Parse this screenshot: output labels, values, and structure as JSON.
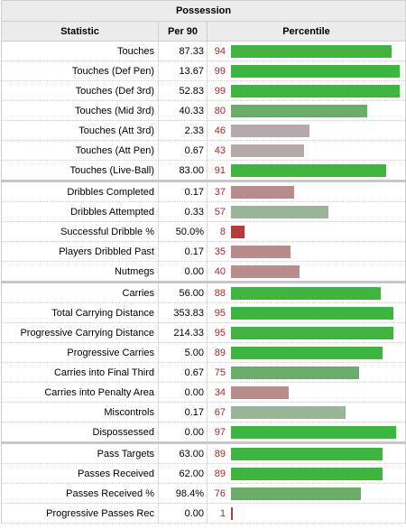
{
  "section_title": "Possession",
  "columns": {
    "statistic": "Statistic",
    "per90": "Per 90",
    "percentile": "Percentile"
  },
  "colors": {
    "elite_bar": "#3fb53f",
    "high_bar": "#6aac6a",
    "mid_bar": "#9ab49a",
    "neutral_bar": "#b5a9a9",
    "low_bar": "#b98c8c",
    "bottom_bar": "#b43c3c",
    "pct_text": "#9e2a2a"
  },
  "groups": [
    {
      "rows": [
        {
          "label": "Touches",
          "per90": "87.33",
          "percentile": "94"
        },
        {
          "label": "Touches (Def Pen)",
          "per90": "13.67",
          "percentile": "99"
        },
        {
          "label": "Touches (Def 3rd)",
          "per90": "52.83",
          "percentile": "99"
        },
        {
          "label": "Touches (Mid 3rd)",
          "per90": "40.33",
          "percentile": "80"
        },
        {
          "label": "Touches (Att 3rd)",
          "per90": "2.33",
          "percentile": "46"
        },
        {
          "label": "Touches (Att Pen)",
          "per90": "0.67",
          "percentile": "43"
        },
        {
          "label": "Touches (Live-Ball)",
          "per90": "83.00",
          "percentile": "91"
        }
      ]
    },
    {
      "rows": [
        {
          "label": "Dribbles Completed",
          "per90": "0.17",
          "percentile": "37"
        },
        {
          "label": "Dribbles Attempted",
          "per90": "0.33",
          "percentile": "57"
        },
        {
          "label": "Successful Dribble %",
          "per90": "50.0%",
          "percentile": "8"
        },
        {
          "label": "Players Dribbled Past",
          "per90": "0.17",
          "percentile": "35"
        },
        {
          "label": "Nutmegs",
          "per90": "0.00",
          "percentile": "40"
        }
      ]
    },
    {
      "rows": [
        {
          "label": "Carries",
          "per90": "56.00",
          "percentile": "88"
        },
        {
          "label": "Total Carrying Distance",
          "per90": "353.83",
          "percentile": "95"
        },
        {
          "label": "Progressive Carrying Distance",
          "per90": "214.33",
          "percentile": "95"
        },
        {
          "label": "Progressive Carries",
          "per90": "5.00",
          "percentile": "89"
        },
        {
          "label": "Carries into Final Third",
          "per90": "0.67",
          "percentile": "75"
        },
        {
          "label": "Carries into Penalty Area",
          "per90": "0.00",
          "percentile": "34"
        },
        {
          "label": "Miscontrols",
          "per90": "0.17",
          "percentile": "67"
        },
        {
          "label": "Dispossessed",
          "per90": "0.00",
          "percentile": "97"
        }
      ]
    },
    {
      "rows": [
        {
          "label": "Pass Targets",
          "per90": "63.00",
          "percentile": "89"
        },
        {
          "label": "Passes Received",
          "per90": "62.00",
          "percentile": "89"
        },
        {
          "label": "Passes Received %",
          "per90": "98.4%",
          "percentile": "76"
        },
        {
          "label": "Progressive Passes Rec",
          "per90": "0.00",
          "percentile": "1"
        }
      ]
    }
  ]
}
